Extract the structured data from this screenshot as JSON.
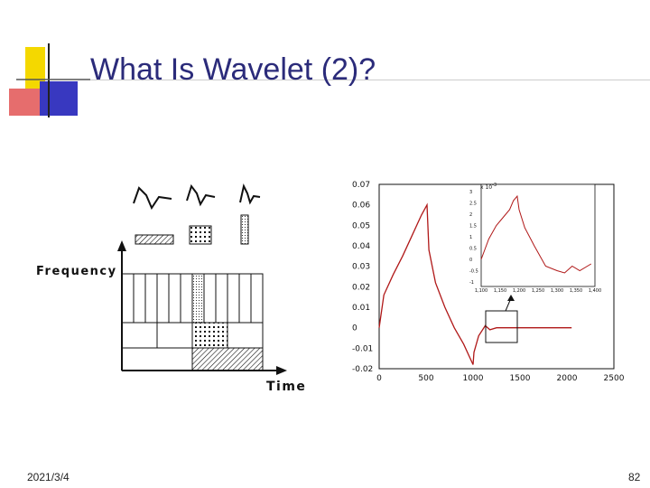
{
  "slide": {
    "title": "What Is Wavelet (2)?",
    "date": "2021/3/4",
    "page_number": "82"
  },
  "tiling_diagram": {
    "y_label": "Frequency",
    "x_label": "Time"
  },
  "chart_data": {
    "type": "line",
    "title": "",
    "xlabel": "",
    "ylabel": "",
    "xlim": [
      0,
      2500
    ],
    "ylim": [
      -0.02,
      0.07
    ],
    "x_ticks": [
      "0",
      "500",
      "1000",
      "1500",
      "2000",
      "2500"
    ],
    "y_ticks": [
      "0.07",
      "0.06",
      "0.05",
      "0.04",
      "0.03",
      "0.02",
      "0.01",
      "0",
      "-0.01",
      "-0.02"
    ],
    "series": [
      {
        "color": "#b01818",
        "points": [
          [
            0,
            0.0
          ],
          [
            50,
            0.016
          ],
          [
            150,
            0.026
          ],
          [
            250,
            0.035
          ],
          [
            350,
            0.045
          ],
          [
            450,
            0.055
          ],
          [
            510,
            0.06
          ],
          [
            530,
            0.038
          ],
          [
            600,
            0.022
          ],
          [
            700,
            0.01
          ],
          [
            800,
            0.0
          ],
          [
            900,
            -0.008
          ],
          [
            1000,
            -0.018
          ],
          [
            1010,
            -0.012
          ],
          [
            1060,
            -0.004
          ],
          [
            1130,
            0.001
          ],
          [
            1180,
            -0.001
          ],
          [
            1250,
            0.0
          ],
          [
            2050,
            0.0
          ]
        ]
      }
    ],
    "inset": {
      "y_ticks": [
        "3",
        "2.5",
        "2",
        "1.5",
        "1",
        "0.5",
        "0",
        "-0.5",
        "-1"
      ],
      "x_ticks": [
        "1,100",
        "1,150",
        "1,200",
        "1,250",
        "1,300",
        "1,350",
        "1,400"
      ],
      "exponent_label": "x 10",
      "exponent_power": "-3",
      "points": [
        [
          1100,
          0.0
        ],
        [
          1120,
          0.9
        ],
        [
          1140,
          1.5
        ],
        [
          1160,
          1.9
        ],
        [
          1175,
          2.2
        ],
        [
          1185,
          2.6
        ],
        [
          1195,
          2.8
        ],
        [
          1200,
          2.2
        ],
        [
          1215,
          1.4
        ],
        [
          1240,
          0.6
        ],
        [
          1270,
          -0.3
        ],
        [
          1300,
          -0.5
        ],
        [
          1320,
          -0.6
        ],
        [
          1340,
          -0.3
        ],
        [
          1360,
          -0.5
        ],
        [
          1390,
          -0.2
        ]
      ]
    }
  }
}
